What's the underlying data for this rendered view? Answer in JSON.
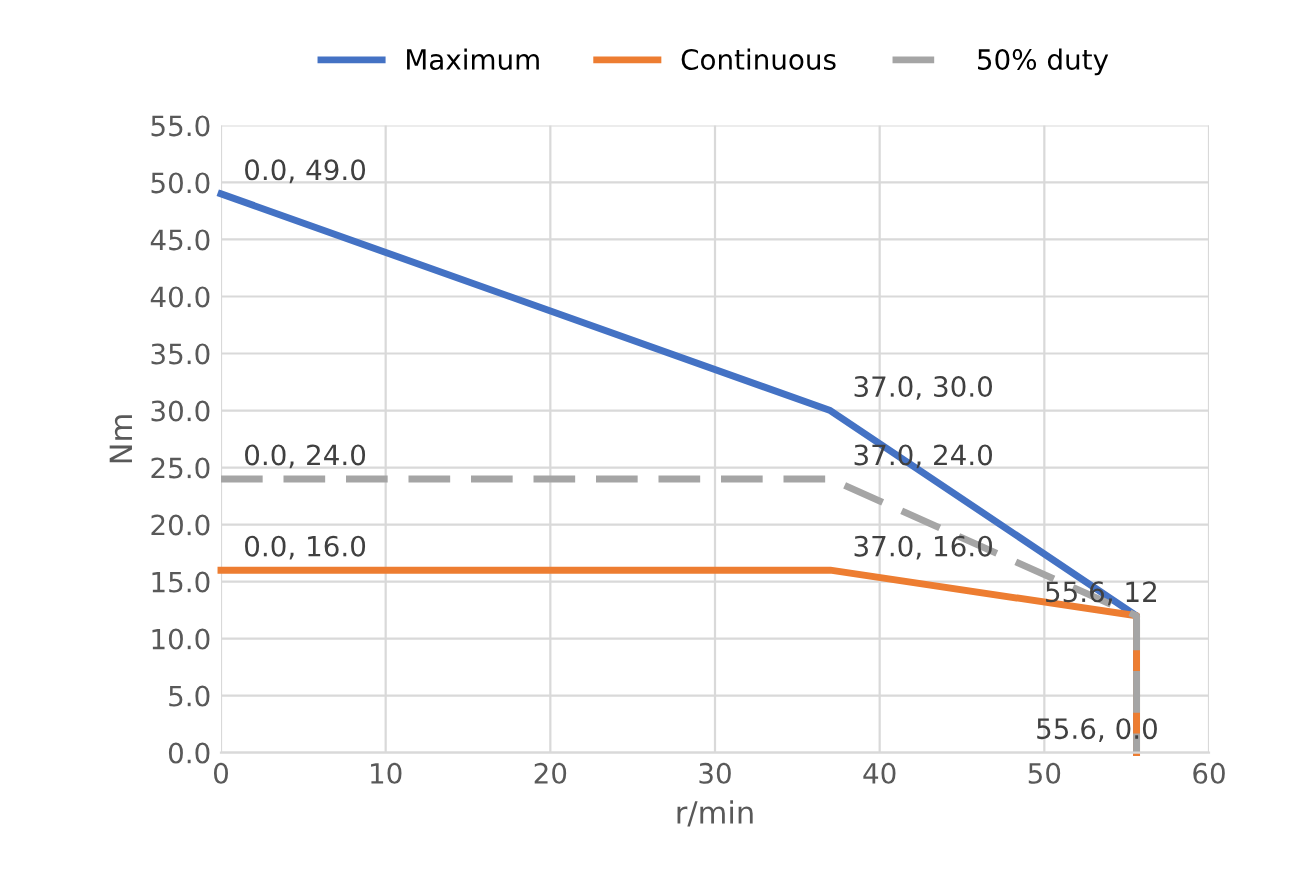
{
  "chart_data": {
    "type": "line",
    "xlabel": "r/min",
    "ylabel": "Nm",
    "legend": "top",
    "grid": true,
    "marker": "none",
    "xlim": [
      0,
      60
    ],
    "xticks": [
      0,
      10,
      20,
      30,
      40,
      50,
      60
    ],
    "ylim": [
      0,
      55
    ],
    "yticks": [
      {
        "value": 0,
        "label": "0.0"
      },
      {
        "value": 5,
        "label": "5.0"
      },
      {
        "value": 10,
        "label": "10.0"
      },
      {
        "value": 15,
        "label": "15.0"
      },
      {
        "value": 20,
        "label": "20.0"
      },
      {
        "value": 25,
        "label": "25.0"
      },
      {
        "value": 30,
        "label": "30.0"
      },
      {
        "value": 35,
        "label": "35.0"
      },
      {
        "value": 40,
        "label": "40.0"
      },
      {
        "value": 45,
        "label": "45.0"
      },
      {
        "value": 50,
        "label": "50.0"
      },
      {
        "value": 55,
        "label": "55.0"
      }
    ],
    "series": [
      {
        "name": "Maximum",
        "color": "#4472c4",
        "line_style": "solid",
        "x": [
          0,
          37,
          55.6,
          55.6
        ],
        "values": [
          49,
          30,
          12,
          0
        ],
        "value_labels": [
          "0.0, 49.0",
          "37.0, 30.0",
          "55.6, 12",
          null
        ]
      },
      {
        "name": "Continuous",
        "color": "#ed7d31",
        "line_style": "solid",
        "x": [
          0,
          37,
          55.6,
          55.6
        ],
        "values": [
          16,
          16,
          12,
          0
        ],
        "value_labels": [
          "0.0, 16.0",
          "37.0, 16.0",
          null,
          null
        ]
      },
      {
        "name": "50% duty",
        "color": "#a5a5a5",
        "line_style": "dashed",
        "x": [
          0,
          37,
          55.6,
          55.6
        ],
        "values": [
          24,
          24,
          12,
          0
        ],
        "value_labels": [
          "0.0, 24.0",
          "37.0, 24.0",
          null,
          "55.6, 0.0"
        ]
      }
    ]
  }
}
